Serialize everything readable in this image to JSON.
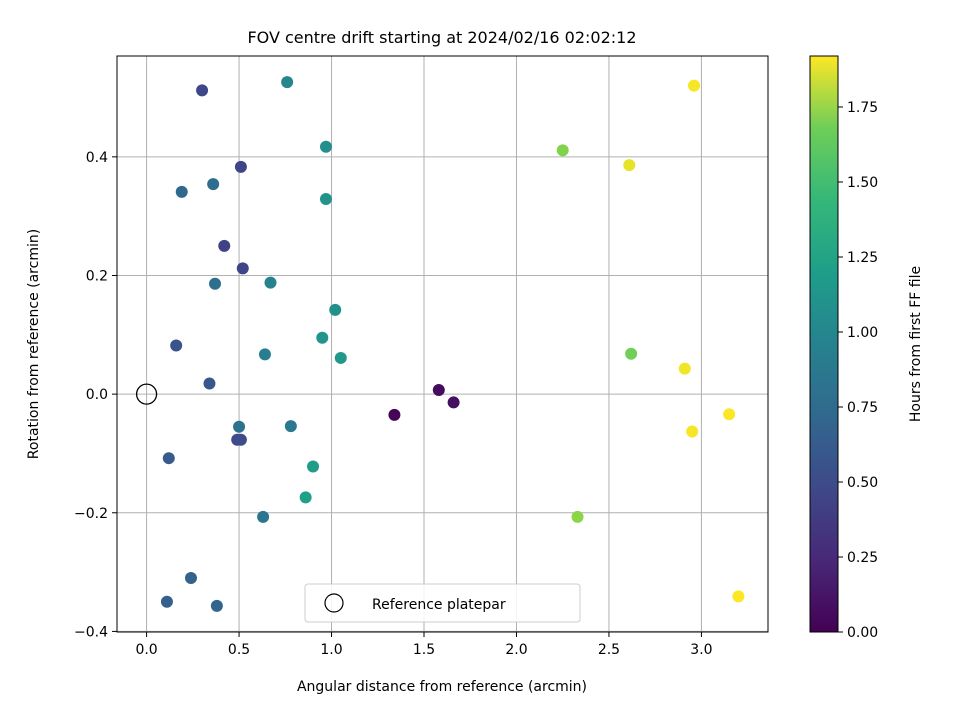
{
  "chart_data": {
    "type": "scatter",
    "title": "FOV centre drift starting at 2024/02/16 02:02:12",
    "xlabel": "Angular distance from reference (arcmin)",
    "ylabel": "Rotation from reference (arcmin)",
    "xlim": [
      -0.16,
      3.36
    ],
    "ylim": [
      -0.401,
      0.57
    ],
    "xticks": [
      0.0,
      0.5,
      1.0,
      1.5,
      2.0,
      2.5,
      3.0
    ],
    "xtick_labels": [
      "0.0",
      "0.5",
      "1.0",
      "1.5",
      "2.0",
      "2.5",
      "3.0"
    ],
    "yticks": [
      -0.4,
      -0.2,
      0.0,
      0.2,
      0.4
    ],
    "ytick_labels": [
      "−0.4",
      "−0.2",
      "0.0",
      "0.2",
      "0.4"
    ],
    "grid": true,
    "legend": {
      "placement": "lower-center",
      "entries": [
        {
          "label": "Reference platepar",
          "marker": "open-circle"
        }
      ]
    },
    "reference_point": {
      "x": 0.0,
      "y": 0.0
    },
    "colorbar": {
      "label": "Hours from first FF file",
      "colormap": "viridis",
      "range": [
        0.0,
        1.92
      ],
      "ticks": [
        0.0,
        0.25,
        0.5,
        0.75,
        1.0,
        1.25,
        1.5,
        1.75
      ],
      "tick_labels": [
        "0.00",
        "0.25",
        "0.50",
        "0.75",
        "1.00",
        "1.25",
        "1.50",
        "1.75"
      ]
    },
    "points": [
      {
        "x": 1.34,
        "y": -0.035,
        "c": 0.03
      },
      {
        "x": 1.58,
        "y": 0.007,
        "c": 0.06
      },
      {
        "x": 1.66,
        "y": -0.014,
        "c": 0.08
      },
      {
        "x": 0.42,
        "y": 0.25,
        "c": 0.38
      },
      {
        "x": 0.52,
        "y": 0.212,
        "c": 0.4
      },
      {
        "x": 0.51,
        "y": 0.383,
        "c": 0.4
      },
      {
        "x": 0.3,
        "y": 0.512,
        "c": 0.42
      },
      {
        "x": 0.49,
        "y": -0.077,
        "c": 0.44
      },
      {
        "x": 0.51,
        "y": -0.077,
        "c": 0.45
      },
      {
        "x": 0.16,
        "y": 0.082,
        "c": 0.5
      },
      {
        "x": 0.34,
        "y": 0.018,
        "c": 0.52
      },
      {
        "x": 0.12,
        "y": -0.108,
        "c": 0.55
      },
      {
        "x": 0.11,
        "y": -0.35,
        "c": 0.58
      },
      {
        "x": 0.24,
        "y": -0.31,
        "c": 0.6
      },
      {
        "x": 0.38,
        "y": -0.357,
        "c": 0.62
      },
      {
        "x": 0.19,
        "y": 0.341,
        "c": 0.65
      },
      {
        "x": 0.36,
        "y": 0.354,
        "c": 0.68
      },
      {
        "x": 0.37,
        "y": 0.186,
        "c": 0.7
      },
      {
        "x": 0.5,
        "y": -0.055,
        "c": 0.72
      },
      {
        "x": 0.63,
        "y": -0.207,
        "c": 0.75
      },
      {
        "x": 0.78,
        "y": -0.054,
        "c": 0.78
      },
      {
        "x": 0.64,
        "y": 0.067,
        "c": 0.82
      },
      {
        "x": 0.67,
        "y": 0.188,
        "c": 0.85
      },
      {
        "x": 0.76,
        "y": 0.526,
        "c": 0.88
      },
      {
        "x": 0.97,
        "y": 0.417,
        "c": 0.95
      },
      {
        "x": 0.97,
        "y": 0.329,
        "c": 0.98
      },
      {
        "x": 1.02,
        "y": 0.142,
        "c": 0.97
      },
      {
        "x": 0.95,
        "y": 0.095,
        "c": 1.0
      },
      {
        "x": 1.05,
        "y": 0.061,
        "c": 1.02
      },
      {
        "x": 0.9,
        "y": -0.122,
        "c": 1.05
      },
      {
        "x": 0.86,
        "y": -0.174,
        "c": 1.08
      },
      {
        "x": 2.25,
        "y": 0.411,
        "c": 1.55
      },
      {
        "x": 2.62,
        "y": 0.068,
        "c": 1.5
      },
      {
        "x": 2.33,
        "y": -0.207,
        "c": 1.58
      },
      {
        "x": 2.61,
        "y": 0.386,
        "c": 1.85
      },
      {
        "x": 2.96,
        "y": 0.52,
        "c": 1.9
      },
      {
        "x": 2.91,
        "y": 0.043,
        "c": 1.88
      },
      {
        "x": 2.95,
        "y": -0.063,
        "c": 1.9
      },
      {
        "x": 3.15,
        "y": -0.034,
        "c": 1.91
      },
      {
        "x": 3.2,
        "y": -0.341,
        "c": 1.92
      }
    ]
  }
}
